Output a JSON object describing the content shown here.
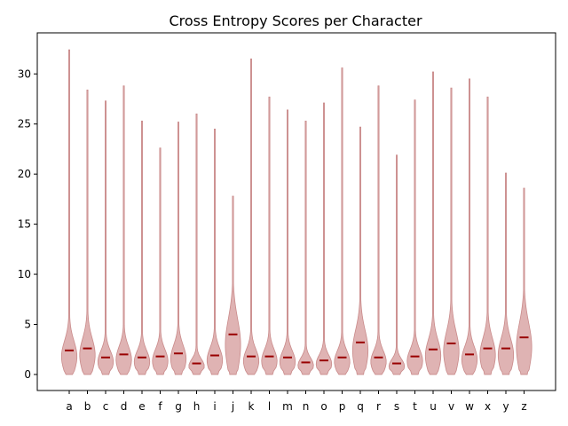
{
  "chart_data": {
    "type": "violin",
    "title": "Cross Entropy Scores per Character",
    "xlabel": "",
    "ylabel": "",
    "ylim": [
      -1.6,
      34.1
    ],
    "yticks": [
      0,
      5,
      10,
      15,
      20,
      25,
      30
    ],
    "categories": [
      "a",
      "b",
      "c",
      "d",
      "e",
      "f",
      "g",
      "h",
      "i",
      "j",
      "k",
      "l",
      "m",
      "n",
      "o",
      "p",
      "q",
      "r",
      "s",
      "t",
      "u",
      "v",
      "w",
      "x",
      "y",
      "z"
    ],
    "max_values": [
      32.4,
      28.4,
      27.3,
      28.8,
      25.3,
      22.6,
      25.2,
      26.0,
      24.5,
      17.8,
      31.5,
      27.7,
      26.4,
      25.3,
      27.1,
      30.6,
      24.7,
      28.8,
      21.9,
      27.4,
      30.2,
      28.6,
      29.5,
      27.7,
      20.1,
      18.6
    ],
    "medians": [
      2.4,
      2.6,
      1.7,
      2.0,
      1.7,
      1.8,
      2.1,
      1.1,
      1.9,
      4.0,
      1.8,
      1.8,
      1.7,
      1.2,
      1.4,
      1.7,
      3.2,
      1.7,
      1.1,
      1.8,
      2.5,
      3.1,
      2.0,
      2.6,
      2.6,
      3.7
    ],
    "color": "#d49a9a",
    "median_color": "#990000",
    "grid": false
  }
}
